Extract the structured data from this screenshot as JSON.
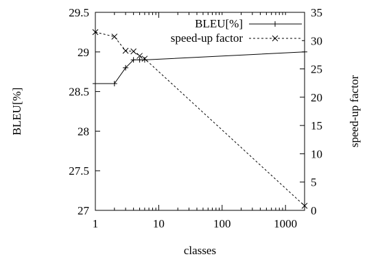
{
  "chart_data": {
    "type": "line",
    "title": "",
    "xlabel": "classes",
    "ylabel": "BLEU[%]",
    "y2label": "speed-up factor",
    "x_scale": "log",
    "xlim": [
      1,
      2000
    ],
    "ylim": [
      27,
      29.5
    ],
    "y2lim": [
      0,
      35
    ],
    "x_ticks": [
      {
        "value": 1,
        "label": "1"
      },
      {
        "value": 10,
        "label": "10"
      },
      {
        "value": 100,
        "label": "100"
      },
      {
        "value": 1000,
        "label": "1000"
      }
    ],
    "y_ticks": [
      {
        "value": 27,
        "label": "27"
      },
      {
        "value": 27.5,
        "label": "27.5"
      },
      {
        "value": 28,
        "label": "28"
      },
      {
        "value": 28.5,
        "label": "28.5"
      },
      {
        "value": 29,
        "label": "29"
      },
      {
        "value": 29.5,
        "label": "29.5"
      }
    ],
    "y2_ticks": [
      {
        "value": 0,
        "label": "0"
      },
      {
        "value": 5,
        "label": "5"
      },
      {
        "value": 10,
        "label": "10"
      },
      {
        "value": 15,
        "label": "15"
      },
      {
        "value": 20,
        "label": "20"
      },
      {
        "value": 25,
        "label": "25"
      },
      {
        "value": 30,
        "label": "30"
      },
      {
        "value": 35,
        "label": "35"
      }
    ],
    "grid": false,
    "legend_position": "top-right",
    "series": [
      {
        "name": "BLEU[%]",
        "axis": "left",
        "line_style": "solid",
        "marker": "plus",
        "color": "#000000",
        "x": [
          1,
          2,
          3,
          4,
          5,
          6,
          2000
        ],
        "y": [
          28.6,
          28.6,
          28.8,
          28.9,
          28.9,
          28.9,
          29.0
        ]
      },
      {
        "name": "speed-up factor",
        "axis": "right",
        "line_style": "dashed",
        "marker": "cross",
        "color": "#000000",
        "x": [
          1,
          2,
          3,
          4,
          5,
          6,
          2000
        ],
        "y": [
          31.5,
          30.7,
          28.2,
          28.1,
          27.3,
          26.8,
          0.8
        ]
      }
    ]
  }
}
